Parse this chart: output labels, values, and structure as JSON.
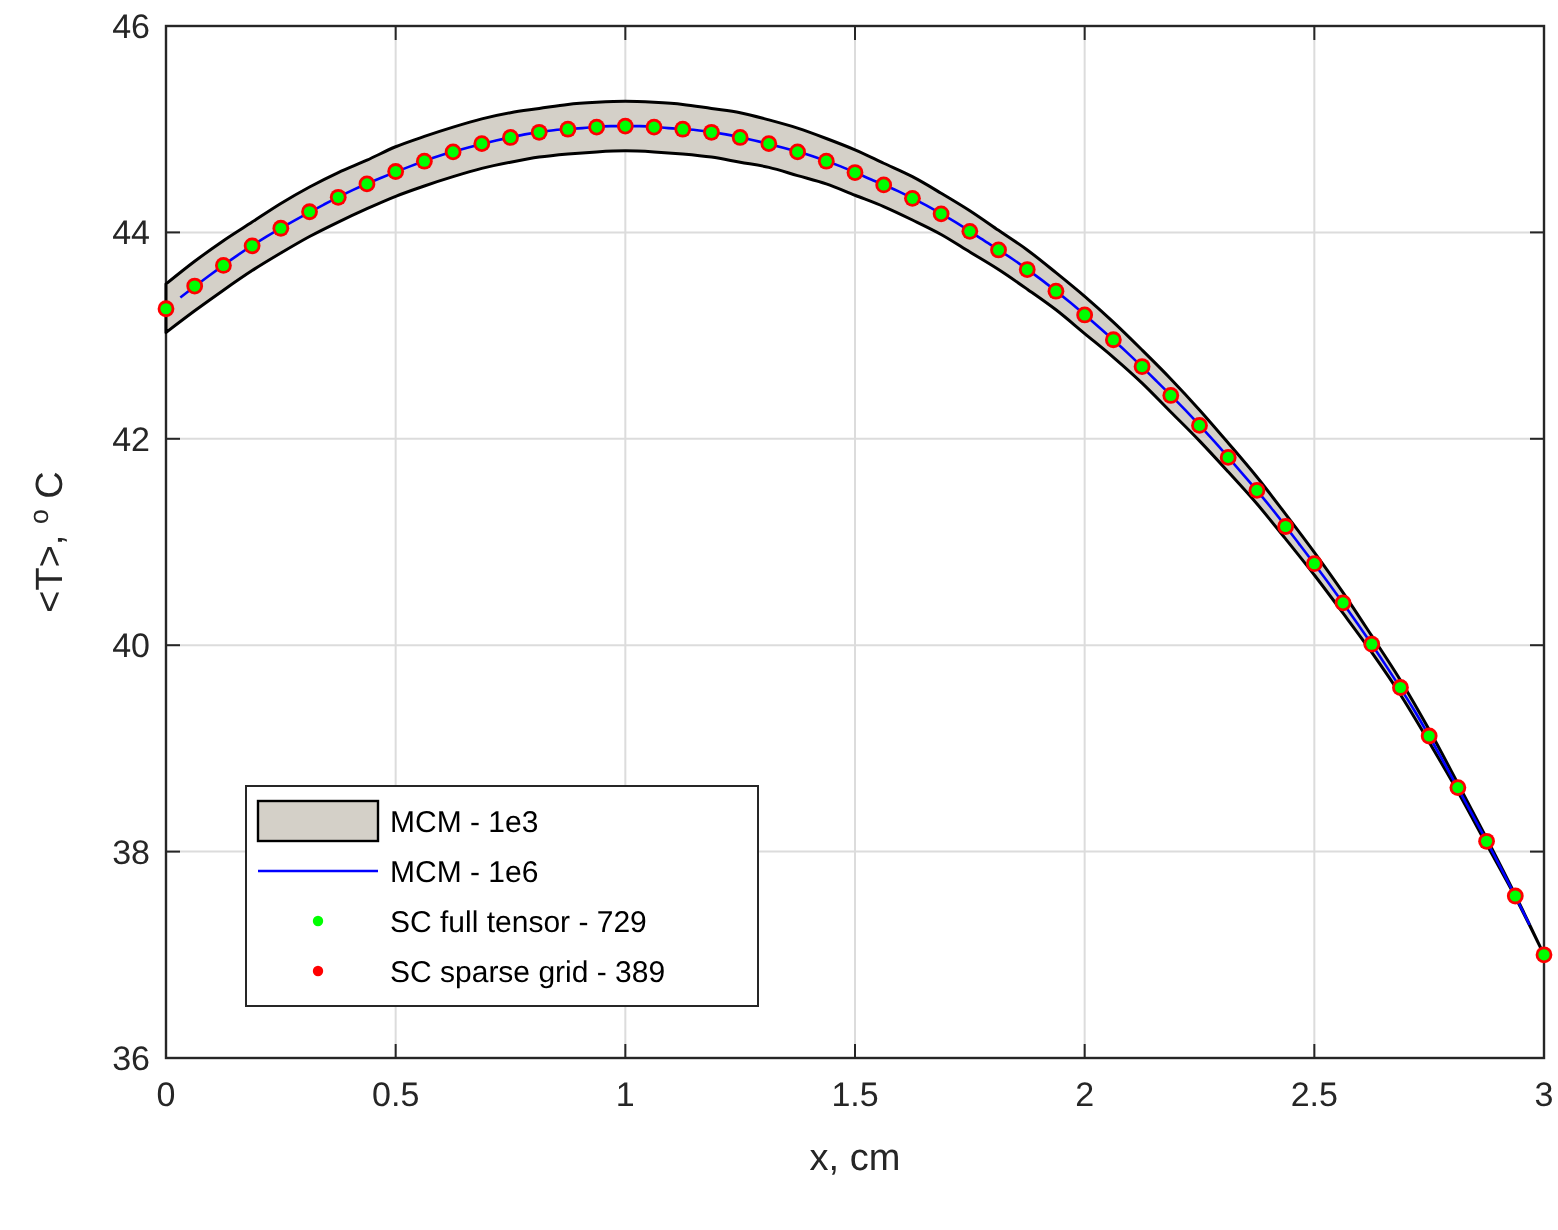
{
  "chart_data": {
    "type": "line",
    "xlabel": "x, cm",
    "ylabel": "<T>, $^{o}$ C",
    "x": [
      0,
      0.0625,
      0.125,
      0.1875,
      0.25,
      0.3125,
      0.375,
      0.4375,
      0.5,
      0.5625,
      0.625,
      0.6875,
      0.75,
      0.8125,
      0.875,
      0.9375,
      1,
      1.0625,
      1.125,
      1.1875,
      1.25,
      1.3125,
      1.375,
      1.4375,
      1.5,
      1.5625,
      1.625,
      1.6875,
      1.75,
      1.8125,
      1.875,
      1.9375,
      2,
      2.0625,
      2.125,
      2.1875,
      2.25,
      2.3125,
      2.375,
      2.4375,
      2.5,
      2.5625,
      2.625,
      2.6875,
      2.75,
      2.8125,
      2.875,
      2.9375,
      3
    ],
    "series": [
      {
        "name": "MCM - 1e3",
        "type": "line",
        "color": "#d4d0c8",
        "values": [
          null,
          null,
          null,
          null,
          null,
          null,
          null,
          null,
          null,
          null,
          null,
          null,
          null,
          null,
          null,
          null,
          null,
          null,
          null,
          null,
          null,
          null,
          null,
          null,
          null,
          null,
          null,
          null,
          null,
          null,
          null,
          null,
          null,
          null,
          null,
          null,
          null,
          null,
          null,
          null,
          null,
          null,
          null,
          null,
          null,
          null,
          null,
          null,
          null
        ],
        "lower": [
          43.03,
          43.24,
          43.44,
          43.63,
          43.8,
          43.96,
          44.1,
          44.23,
          44.35,
          44.45,
          44.54,
          44.62,
          44.68,
          44.73,
          44.76,
          44.78,
          44.79,
          44.78,
          44.76,
          44.73,
          44.68,
          44.63,
          44.55,
          44.47,
          44.36,
          44.25,
          44.12,
          43.98,
          43.81,
          43.64,
          43.45,
          43.25,
          43.02,
          42.79,
          42.54,
          42.26,
          41.98,
          41.68,
          41.37,
          41.03,
          40.68,
          40.31,
          39.93,
          39.52,
          39.06,
          38.58,
          38.07,
          37.56,
          37.0
        ],
        "upper": [
          43.5,
          43.72,
          43.92,
          44.1,
          44.28,
          44.44,
          44.58,
          44.7,
          44.83,
          44.93,
          45.02,
          45.1,
          45.16,
          45.2,
          45.24,
          45.26,
          45.27,
          45.26,
          45.24,
          45.2,
          45.16,
          45.09,
          45.01,
          44.91,
          44.8,
          44.67,
          44.54,
          44.38,
          44.21,
          44.02,
          43.83,
          43.61,
          43.38,
          43.13,
          42.86,
          42.58,
          42.28,
          41.96,
          41.63,
          41.27,
          40.9,
          40.51,
          40.09,
          39.66,
          39.18,
          38.66,
          38.13,
          37.58,
          37.0
        ]
      },
      {
        "name": "MCM - 1e6",
        "color": "#0000ff",
        "marker": "none",
        "x": [
          0.03125,
          0.09375,
          0.15625,
          0.21875,
          0.28125,
          0.34375,
          0.40625,
          0.46875,
          0.53125,
          0.59375,
          0.65625,
          0.71875,
          0.78125,
          0.84375,
          0.90625,
          0.96875,
          1.03125,
          1.09375,
          1.15625,
          1.21875,
          1.28125,
          1.34375,
          1.40625,
          1.46875,
          1.53125,
          1.59375,
          1.65625,
          1.71875,
          1.78125,
          1.84375,
          1.90625,
          1.96875,
          2.03125,
          2.09375,
          2.15625,
          2.21875,
          2.28125,
          2.34375,
          2.40625,
          2.46875,
          2.53125,
          2.59375,
          2.65625,
          2.71875,
          2.78125,
          2.84375,
          2.90625,
          2.96875
        ],
        "values": [
          43.37,
          43.58,
          43.78,
          43.96,
          44.12,
          44.27,
          44.41,
          44.53,
          44.64,
          44.74,
          44.82,
          44.89,
          44.95,
          44.99,
          45.01,
          45.03,
          45.03,
          45.01,
          44.99,
          44.95,
          44.89,
          44.82,
          44.74,
          44.64,
          44.52,
          44.4,
          44.26,
          44.1,
          43.92,
          43.74,
          43.54,
          43.32,
          43.08,
          42.83,
          42.56,
          42.28,
          41.98,
          41.66,
          41.33,
          40.97,
          40.6,
          40.21,
          39.8,
          39.36,
          38.87,
          38.36,
          37.84,
          37.29
        ]
      },
      {
        "name": "SC full tensor - 729",
        "type": "scatter",
        "color": "#00ff00",
        "marker": "circle",
        "values": [
          43.26,
          43.48,
          43.68,
          43.87,
          44.04,
          44.2,
          44.34,
          44.47,
          44.59,
          44.69,
          44.78,
          44.86,
          44.92,
          44.97,
          45.0,
          45.02,
          45.03,
          45.02,
          45.0,
          44.97,
          44.92,
          44.86,
          44.78,
          44.69,
          44.58,
          44.46,
          44.33,
          44.18,
          44.01,
          43.83,
          43.64,
          43.43,
          43.2,
          42.96,
          42.7,
          42.42,
          42.13,
          41.82,
          41.5,
          41.15,
          40.79,
          40.41,
          40.01,
          39.59,
          39.12,
          38.62,
          38.1,
          37.57,
          37.0
        ]
      },
      {
        "name": "SC sparse grid - 389",
        "type": "scatter",
        "color": "#ff0000",
        "marker": "circle",
        "values": [
          43.26,
          43.48,
          43.68,
          43.87,
          44.04,
          44.2,
          44.34,
          44.47,
          44.59,
          44.69,
          44.78,
          44.86,
          44.92,
          44.97,
          45.0,
          45.02,
          45.03,
          45.02,
          45.0,
          44.97,
          44.92,
          44.86,
          44.78,
          44.69,
          44.58,
          44.46,
          44.33,
          44.18,
          44.01,
          43.83,
          43.64,
          43.43,
          43.2,
          42.96,
          42.7,
          42.42,
          42.13,
          41.82,
          41.5,
          41.15,
          40.79,
          40.41,
          40.01,
          39.59,
          39.12,
          38.62,
          38.1,
          37.57,
          37.0
        ]
      }
    ],
    "xlim": [
      0,
      3
    ],
    "ylim": [
      36,
      46
    ],
    "xticks": [
      0,
      0.5,
      1,
      1.5,
      2,
      2.5,
      3
    ],
    "yticks": [
      36,
      38,
      40,
      42,
      44,
      46
    ],
    "grid": true,
    "legend": "bottom left"
  }
}
